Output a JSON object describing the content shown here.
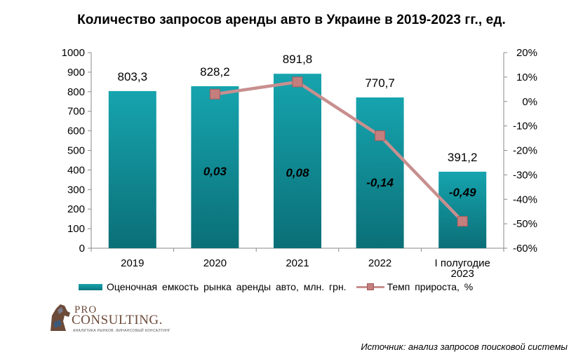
{
  "title": "Количество запросов аренды авто в Украине в 2019-2023 гг., ед.",
  "chart_data": {
    "type": "bar",
    "categories": [
      "2019",
      "2020",
      "2021",
      "2022",
      "I полугодие 2023"
    ],
    "category_lines": [
      [
        "2019"
      ],
      [
        "2020"
      ],
      [
        "2021"
      ],
      [
        "2022"
      ],
      [
        "I полугодие",
        "2023"
      ]
    ],
    "series": [
      {
        "name": "Оценочная  емкость  рынка  аренды  авто,  млн.  грн.",
        "type": "bar",
        "axis": "left",
        "values": [
          803.3,
          828.2,
          891.8,
          770.7,
          391.2
        ],
        "labels": [
          "803,3",
          "828,2",
          "891,8",
          "770,7",
          "391,2"
        ],
        "color": "#0f8f99"
      },
      {
        "name": "Темп  прироста,  %",
        "type": "line",
        "axis": "right",
        "values": [
          null,
          0.03,
          0.08,
          -0.14,
          -0.49
        ],
        "labels": [
          "",
          "0,03",
          "0,08",
          "-0,14",
          "-0,49"
        ],
        "color": "#c88f8f"
      }
    ],
    "y_left": {
      "range": [
        0,
        1000
      ],
      "ticks": [
        0,
        100,
        200,
        300,
        400,
        500,
        600,
        700,
        800,
        900,
        1000
      ]
    },
    "y_right": {
      "range": [
        -0.6,
        0.2
      ],
      "ticks": [
        -0.6,
        -0.5,
        -0.4,
        -0.3,
        -0.2,
        -0.1,
        0,
        0.1,
        0.2
      ],
      "tick_labels": [
        "-60%",
        "-50%",
        "-40%",
        "-30%",
        "-20%",
        "-10%",
        "0%",
        "10%",
        "20%"
      ]
    },
    "grid": false,
    "legend_position": "bottom"
  },
  "logo": {
    "line1": "PRO",
    "line2": "CONSULTING.",
    "tagline": "АНАЛИТИКА РЫНКОВ. ФИНАНСОВЫЙ КОНСАЛТИНГ"
  },
  "source": "Источник: анализ запросов поисковой системы"
}
